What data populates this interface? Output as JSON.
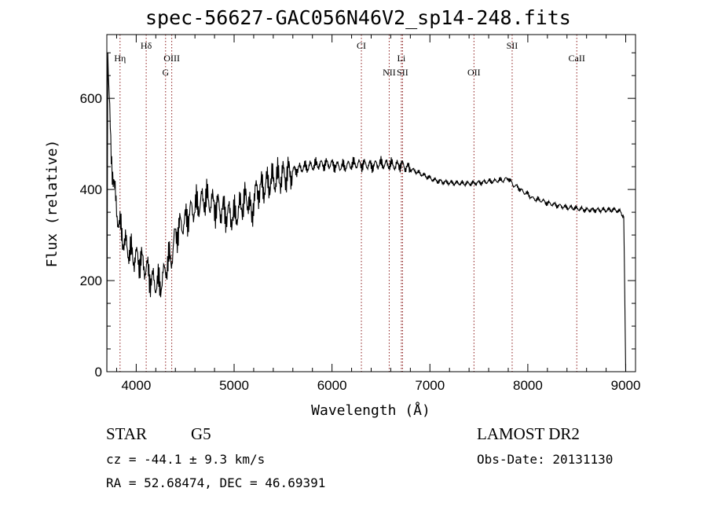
{
  "chart_data": {
    "type": "line",
    "title": "spec-56627-GAC056N46V2_sp14-248.fits",
    "xlabel": "Wavelength (Å)",
    "ylabel": "Flux (relative)",
    "xlim": [
      3700,
      9100
    ],
    "ylim": [
      0,
      740
    ],
    "x_ticks": [
      4000,
      5000,
      6000,
      7000,
      8000,
      9000
    ],
    "y_ticks": [
      0,
      200,
      400,
      600
    ],
    "grid": false,
    "line_color": "#000000",
    "marker_color": "#8b1a1a",
    "lines": [
      {
        "label": "Hη",
        "x": 3835,
        "row": 2
      },
      {
        "label": "Hδ",
        "x": 4102,
        "row": 1
      },
      {
        "label": "OIII",
        "x": 4363,
        "row": 2
      },
      {
        "label": "G",
        "x": 4300,
        "row": 3
      },
      {
        "label": "CI",
        "x": 6300,
        "row": 1
      },
      {
        "label": "Li",
        "x": 6708,
        "row": 2
      },
      {
        "label": "NII",
        "x": 6584,
        "row": 3
      },
      {
        "label": "SII",
        "x": 6720,
        "row": 3
      },
      {
        "label": "OII",
        "x": 7450,
        "row": 3
      },
      {
        "label": "SII",
        "x": 7840,
        "row": 1
      },
      {
        "label": "CaII",
        "x": 8500,
        "row": 2
      }
    ],
    "series": [
      {
        "x": [
          3700,
          3710,
          3720,
          3730,
          3740,
          3760,
          3780,
          3800,
          3820,
          3840,
          3860,
          3880,
          3900,
          3930,
          3960,
          4000,
          4040,
          4080,
          4120,
          4160,
          4200,
          4240,
          4280,
          4320,
          4360,
          4400,
          4450,
          4500,
          4550,
          4600,
          4650,
          4700,
          4750,
          4800,
          4850,
          4900,
          4950,
          5000,
          5050,
          5100,
          5150,
          5180,
          5200,
          5250,
          5300,
          5350,
          5400,
          5450,
          5500,
          5550,
          5600,
          5650,
          5700,
          5750,
          5800,
          5850,
          5900,
          5950,
          6000,
          6050,
          6100,
          6150,
          6200,
          6250,
          6300,
          6350,
          6400,
          6450,
          6500,
          6550,
          6600,
          6650,
          6700,
          6750,
          6800,
          6850,
          6900,
          6950,
          7000,
          7050,
          7100,
          7150,
          7200,
          7250,
          7300,
          7350,
          7400,
          7450,
          7500,
          7550,
          7600,
          7650,
          7700,
          7750,
          7800,
          7850,
          7900,
          7950,
          8000,
          8050,
          8100,
          8150,
          8200,
          8250,
          8300,
          8350,
          8400,
          8450,
          8500,
          8550,
          8600,
          8650,
          8700,
          8750,
          8800,
          8850,
          8900,
          8950,
          8980,
          9000
        ],
        "y": [
          0,
          700,
          610,
          560,
          500,
          440,
          390,
          360,
          330,
          310,
          300,
          280,
          275,
          265,
          255,
          250,
          245,
          235,
          220,
          200,
          195,
          190,
          210,
          240,
          250,
          300,
          320,
          330,
          350,
          360,
          370,
          380,
          375,
          365,
          360,
          350,
          345,
          340,
          355,
          375,
          380,
          330,
          385,
          400,
          405,
          415,
          420,
          425,
          430,
          435,
          440,
          445,
          448,
          450,
          452,
          455,
          455,
          456,
          455,
          452,
          450,
          452,
          455,
          456,
          455,
          455,
          452,
          455,
          456,
          455,
          455,
          452,
          455,
          450,
          445,
          440,
          435,
          430,
          425,
          420,
          418,
          416,
          415,
          414,
          414,
          413,
          413,
          414,
          415,
          416,
          418,
          418,
          420,
          420,
          425,
          410,
          405,
          395,
          390,
          380,
          378,
          375,
          370,
          368,
          365,
          363,
          360,
          360,
          358,
          357,
          355,
          355,
          355,
          355,
          355,
          355,
          355,
          350,
          340,
          0
        ]
      }
    ]
  },
  "info": {
    "object_class": "STAR",
    "subclass": "G5",
    "survey": "LAMOST DR2",
    "redshift": "cz = -44.1 ± 9.3 km/s",
    "obs_date": "Obs-Date: 20131130",
    "coords": "RA =  52.68474, DEC =  46.69391"
  }
}
